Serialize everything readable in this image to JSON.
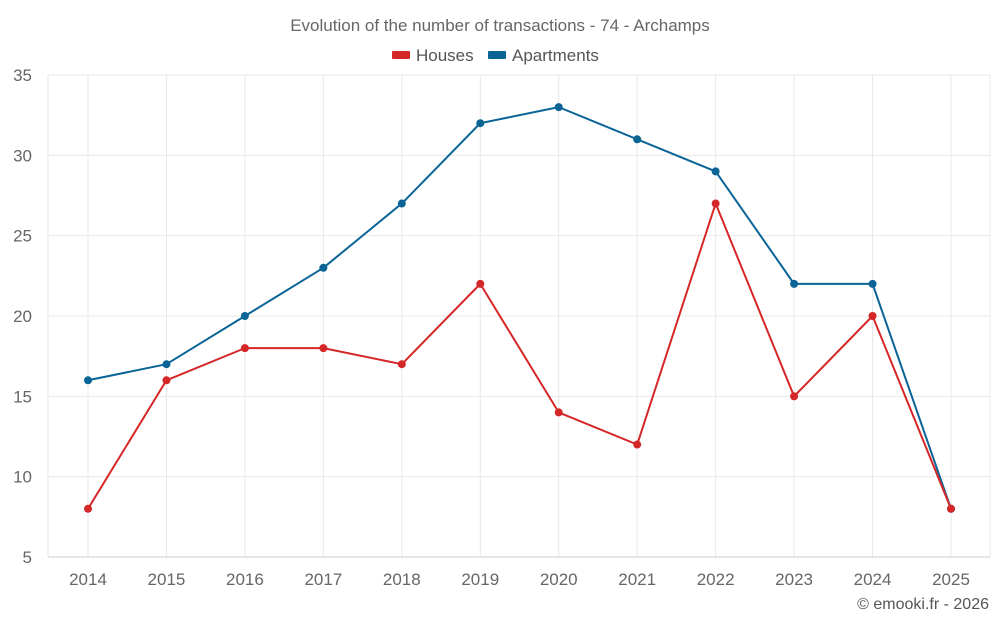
{
  "chart_data": {
    "type": "line",
    "title": "Evolution of the number of transactions - 74 - Archamps",
    "xlabel": "",
    "ylabel": "",
    "categories": [
      "2014",
      "2015",
      "2016",
      "2017",
      "2018",
      "2019",
      "2020",
      "2021",
      "2022",
      "2023",
      "2024",
      "2025"
    ],
    "ylim": [
      5,
      35
    ],
    "yticks": [
      5,
      10,
      15,
      20,
      25,
      30,
      35
    ],
    "grid": true,
    "legend_position": "top-center",
    "series": [
      {
        "name": "Houses",
        "color": "#d62728",
        "values": [
          8,
          16,
          18,
          18,
          17,
          22,
          14,
          12,
          27,
          15,
          20,
          8
        ]
      },
      {
        "name": "Apartments",
        "color": "#0a6496",
        "values": [
          16,
          17,
          20,
          23,
          27,
          32,
          33,
          31,
          29,
          22,
          22,
          8
        ]
      }
    ]
  },
  "credit": "© emooki.fr - 2026"
}
